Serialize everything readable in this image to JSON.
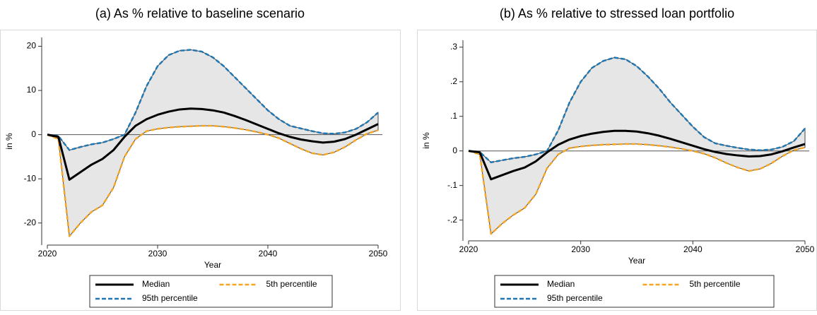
{
  "chart_data": [
    {
      "type": "line",
      "title": "(a)  As % relative to baseline scenario",
      "x_label": "Year",
      "y_label": "in %",
      "x": [
        2020,
        2021,
        2022,
        2023,
        2024,
        2025,
        2026,
        2027,
        2028,
        2029,
        2030,
        2031,
        2032,
        2033,
        2034,
        2035,
        2036,
        2037,
        2038,
        2039,
        2040,
        2041,
        2042,
        2043,
        2044,
        2045,
        2046,
        2047,
        2048,
        2049,
        2050
      ],
      "xlim": [
        2020,
        2050
      ],
      "xticks": [
        2020,
        2030,
        2040,
        2050
      ],
      "ylim": [
        -25,
        22
      ],
      "yticks": [
        -20,
        -10,
        0,
        10,
        20
      ],
      "series": [
        {
          "name": "Median",
          "color": "#000000",
          "values": [
            0,
            -0.5,
            -10.2,
            -8.5,
            -6.8,
            -5.5,
            -3.5,
            -0.5,
            2,
            3.5,
            4.5,
            5.2,
            5.7,
            5.9,
            5.8,
            5.5,
            5,
            4.2,
            3.3,
            2.3,
            1.3,
            0.3,
            -0.5,
            -1.1,
            -1.5,
            -1.8,
            -1.6,
            -1,
            0,
            1.2,
            2.4
          ]
        },
        {
          "name": "5th percentile",
          "color": "#f5a623",
          "values": [
            0,
            -1,
            -23,
            -20,
            -17.5,
            -16,
            -12,
            -5,
            -1,
            0.8,
            1.3,
            1.6,
            1.8,
            1.9,
            2,
            2,
            1.8,
            1.5,
            1.1,
            0.6,
            0,
            -0.8,
            -2,
            -3.2,
            -4.2,
            -4.6,
            -4,
            -2.8,
            -1.2,
            0.2,
            1
          ]
        },
        {
          "name": "95th percentile",
          "color": "#1f77b4",
          "values": [
            0,
            -0.3,
            -3.5,
            -2.8,
            -2.2,
            -1.8,
            -1,
            0,
            5,
            11,
            15.5,
            18,
            19,
            19.2,
            18.8,
            17.5,
            15.5,
            13,
            10.5,
            8,
            5.5,
            3.5,
            2,
            1.4,
            0.8,
            0.3,
            0.2,
            0.5,
            1.3,
            2.8,
            5
          ]
        }
      ]
    },
    {
      "type": "line",
      "title": "(b)  As % relative to stressed loan portfolio",
      "x_label": "Year",
      "y_label": "in %",
      "x": [
        2020,
        2021,
        2022,
        2023,
        2024,
        2025,
        2026,
        2027,
        2028,
        2029,
        2030,
        2031,
        2032,
        2033,
        2034,
        2035,
        2036,
        2037,
        2038,
        2039,
        2040,
        2041,
        2042,
        2043,
        2044,
        2045,
        2046,
        2047,
        2048,
        2049,
        2050
      ],
      "xlim": [
        2020,
        2050
      ],
      "xticks": [
        2020,
        2030,
        2040,
        2050
      ],
      "ylim": [
        -0.26,
        0.32
      ],
      "yticks": [
        {
          "value": -0.2,
          "label": "-.2"
        },
        {
          "value": -0.1,
          "label": "-.1"
        },
        0,
        {
          "value": 0.1,
          "label": ".1"
        },
        {
          "value": 0.2,
          "label": ".2"
        },
        {
          "value": 0.3,
          "label": ".3"
        }
      ],
      "series": [
        {
          "name": "Median",
          "color": "#000000",
          "values": [
            0,
            -0.004,
            -0.082,
            -0.07,
            -0.058,
            -0.048,
            -0.03,
            -0.004,
            0.018,
            0.033,
            0.043,
            0.05,
            0.055,
            0.058,
            0.058,
            0.056,
            0.051,
            0.044,
            0.035,
            0.025,
            0.015,
            0.005,
            -0.003,
            -0.009,
            -0.013,
            -0.016,
            -0.015,
            -0.01,
            -0.001,
            0.01,
            0.02
          ]
        },
        {
          "name": "5th percentile",
          "color": "#f5a623",
          "values": [
            0,
            -0.01,
            -0.24,
            -0.21,
            -0.185,
            -0.165,
            -0.125,
            -0.05,
            -0.01,
            0.008,
            0.013,
            0.016,
            0.018,
            0.019,
            0.02,
            0.02,
            0.018,
            0.015,
            0.011,
            0.006,
            0,
            -0.008,
            -0.02,
            -0.035,
            -0.048,
            -0.058,
            -0.052,
            -0.036,
            -0.015,
            0.002,
            0.01
          ]
        },
        {
          "name": "95th percentile",
          "color": "#1f77b4",
          "values": [
            0,
            -0.003,
            -0.033,
            -0.027,
            -0.021,
            -0.017,
            -0.01,
            0,
            0.06,
            0.14,
            0.2,
            0.24,
            0.26,
            0.27,
            0.265,
            0.245,
            0.215,
            0.18,
            0.14,
            0.105,
            0.07,
            0.04,
            0.022,
            0.015,
            0.009,
            0.004,
            0.002,
            0.004,
            0.012,
            0.028,
            0.065
          ]
        }
      ]
    }
  ]
}
